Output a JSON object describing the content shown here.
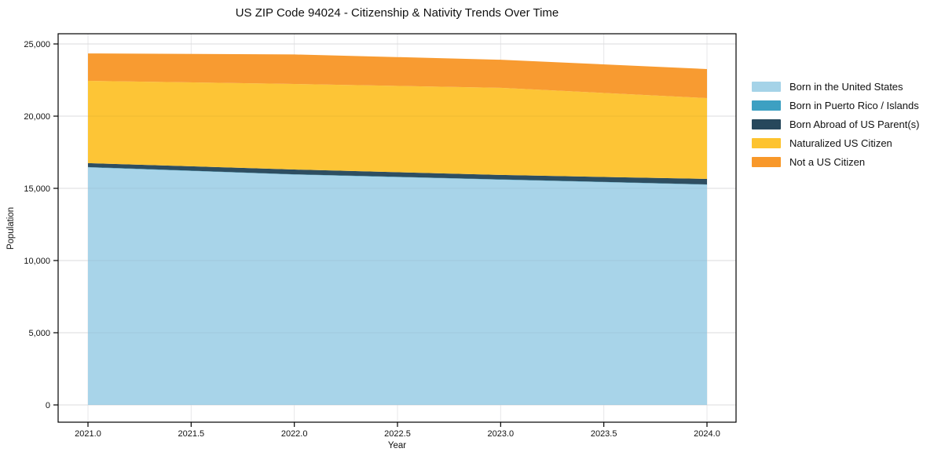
{
  "chart_data": {
    "type": "area",
    "stacked": true,
    "title": "US ZIP Code 94024 - Citizenship & Nativity Trends Over Time",
    "xlabel": "Year",
    "ylabel": "Population",
    "x": [
      2021,
      2022,
      2023,
      2024
    ],
    "series": [
      {
        "name": "Born in the United States",
        "color": "#a5d3e8",
        "values": [
          16450,
          15950,
          15600,
          15250
        ]
      },
      {
        "name": "Born in Puerto Rico / Islands",
        "color": "#3da0c2",
        "values": [
          25,
          25,
          20,
          20
        ]
      },
      {
        "name": "Born Abroad of US Parent(s)",
        "color": "#27485c",
        "values": [
          270,
          330,
          310,
          380
        ]
      },
      {
        "name": "Naturalized US Citizen",
        "color": "#fdc32f",
        "values": [
          5700,
          5925,
          6030,
          5600
        ]
      },
      {
        "name": "Not a US Citizen",
        "color": "#f8982a",
        "values": [
          1900,
          2040,
          1950,
          2010
        ]
      }
    ],
    "xlim": [
      2020.86,
      2024.14
    ],
    "ylim": [
      0,
      25700
    ],
    "x_ticks": [
      2021.0,
      2021.5,
      2022.0,
      2022.5,
      2023.0,
      2023.5,
      2024.0
    ],
    "x_tick_labels": [
      "2021.0",
      "2021.5",
      "2022.0",
      "2022.5",
      "2023.0",
      "2023.5",
      "2024.0"
    ],
    "y_ticks": [
      0,
      5000,
      10000,
      15000,
      20000,
      25000
    ],
    "y_tick_labels": [
      "0",
      "5,000",
      "10,000",
      "15,000",
      "20,000",
      "25,000"
    ],
    "grid": true,
    "legend_position": "right-of-plot",
    "colors": {
      "grid": "#e7e7e9",
      "spine": "#000000",
      "text": "#111111",
      "background": "#ffffff"
    }
  }
}
